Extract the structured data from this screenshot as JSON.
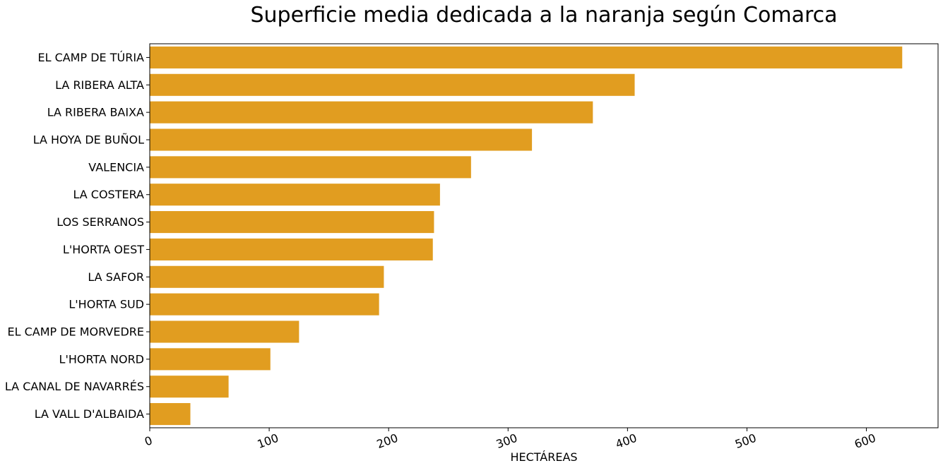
{
  "chart_data": {
    "type": "bar",
    "orientation": "horizontal",
    "title": "Superficie media dedicada a la naranja según Comarca",
    "xlabel": "HECTÁREAS",
    "ylabel": "",
    "categories": [
      "EL CAMP DE TÚRIA",
      "LA RIBERA ALTA",
      "LA RIBERA BAIXA",
      "LA HOYA DE BUÑOL",
      "VALENCIA",
      "LA COSTERA",
      "LOS SERRANOS",
      "L'HORTA OEST",
      "LA SAFOR",
      "L'HORTA SUD",
      "EL CAMP DE MORVEDRE",
      "L'HORTA NORD",
      "LA CANAL DE NAVARRÉS",
      "LA VALL D'ALBAIDA"
    ],
    "values": [
      630,
      406,
      371,
      320,
      269,
      243,
      238,
      237,
      196,
      192,
      125,
      101,
      66,
      34
    ],
    "xlim": [
      0,
      660
    ],
    "xticks": [
      0,
      100,
      200,
      300,
      400,
      500,
      600
    ],
    "tick_rotation": "rotated",
    "bar_color": "#e19d20",
    "grid": false
  }
}
